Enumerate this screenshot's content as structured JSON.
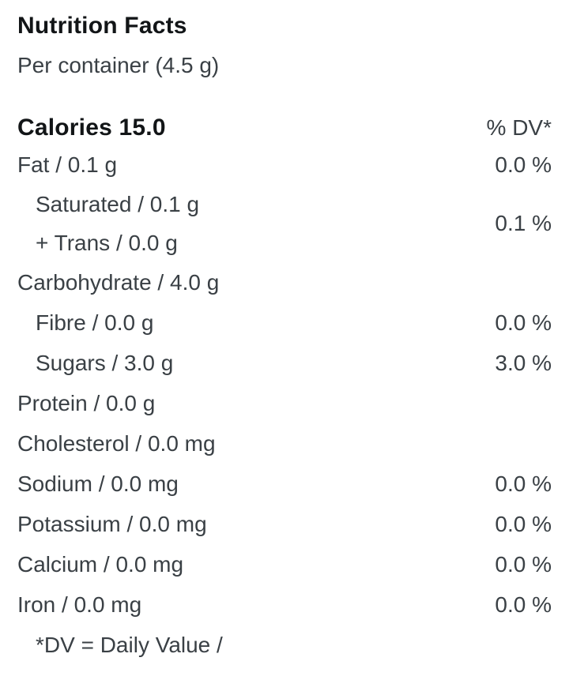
{
  "header": {
    "title": "Nutrition Facts",
    "serving": "Per container (4.5 g)"
  },
  "calories": {
    "label": "Calories 15.0",
    "dv_header": "% DV*"
  },
  "rows": [
    {
      "label": "Fat / 0.1 g",
      "dv": "0.0 %"
    },
    {
      "lines": [
        "Saturated / 0.1 g",
        "+ Trans / 0.0 g"
      ],
      "dv": "0.1 %"
    },
    {
      "label": "Carbohydrate / 4.0 g",
      "dv": ""
    },
    {
      "label": "Fibre / 0.0 g",
      "dv": "0.0 %"
    },
    {
      "label": "Sugars / 3.0 g",
      "dv": "3.0 %"
    },
    {
      "label": "Protein / 0.0 g",
      "dv": ""
    },
    {
      "label": "Cholesterol / 0.0 mg",
      "dv": ""
    },
    {
      "label": "Sodium / 0.0 mg",
      "dv": "0.0 %"
    },
    {
      "label": "Potassium / 0.0 mg",
      "dv": "0.0 %"
    },
    {
      "label": "Calcium / 0.0 mg",
      "dv": "0.0 %"
    },
    {
      "label": "Iron / 0.0 mg",
      "dv": "0.0 %"
    }
  ],
  "footnote": "*DV = Daily Value /",
  "colors": {
    "background": "#ffffff",
    "title_text": "#121517",
    "body_text": "#3a4045"
  }
}
